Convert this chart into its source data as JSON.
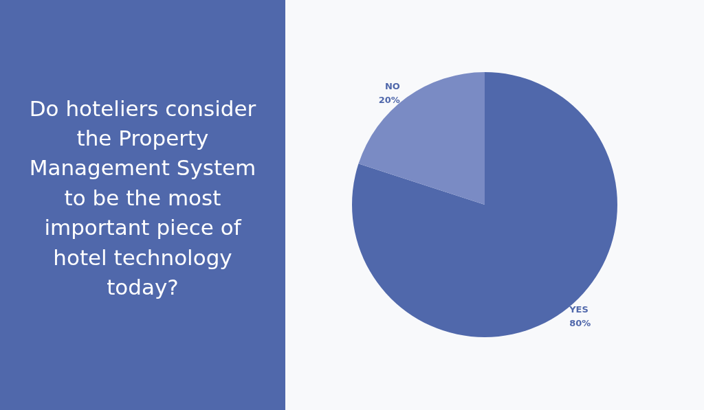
{
  "chart_data": {
    "type": "pie",
    "title": "Do hoteliers consider the Property Management System to be the most important piece of hotel technology today?",
    "categories": [
      "YES",
      "NO"
    ],
    "values": [
      80,
      20
    ],
    "colors": [
      "#5068ab",
      "#7a8bc4"
    ],
    "value_labels": [
      "80%",
      "20%"
    ],
    "legend": false
  }
}
